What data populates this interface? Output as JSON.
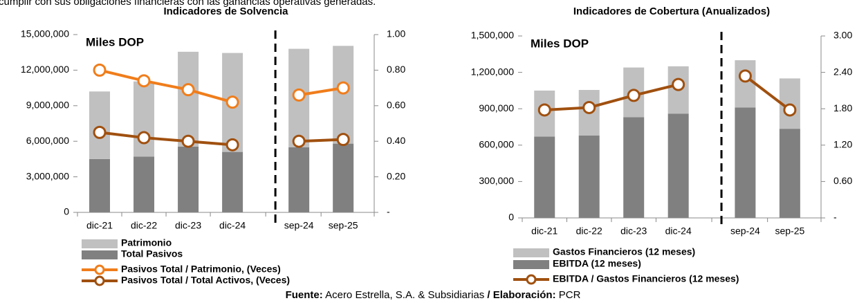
{
  "caption": "cumplir con sus obligaciones financieras con las ganancias operativas generadas.",
  "source": {
    "label": "Fuente:",
    "text": "Acero Estrella, S.A.  & Subsidiarias",
    "label2": "/ Elaboración:",
    "text2": "PCR"
  },
  "chart_data": [
    {
      "type": "bar",
      "title": "Indicadores de Solvencia",
      "annotation": "Miles DOP",
      "categories": [
        "dic-21",
        "dic-22",
        "dic-23",
        "dic-24",
        "sep-24",
        "sep-25"
      ],
      "divider_after": "dic-24",
      "series": [
        {
          "name": "Patrimonio",
          "type": "bar",
          "color": "#c0c0c0",
          "values": [
            5700000,
            6350000,
            8000000,
            8350000,
            8300000,
            8250000
          ]
        },
        {
          "name": "Total Pasivos",
          "type": "bar",
          "color": "#808080",
          "values": [
            4500000,
            4700000,
            5550000,
            5100000,
            5500000,
            5800000
          ]
        },
        {
          "name": "Pasivos Total / Patrimonio, (Veces)",
          "type": "line",
          "axis": "y2",
          "color": "#f07d1b",
          "values": [
            0.8,
            0.74,
            0.69,
            0.62,
            0.66,
            0.7
          ]
        },
        {
          "name": "Pasivos Total / Total Activos, (Veces)",
          "type": "line",
          "axis": "y2",
          "color": "#a0500f",
          "values": [
            0.45,
            0.42,
            0.4,
            0.38,
            0.4,
            0.41
          ]
        }
      ],
      "ylim": [
        0,
        15000000
      ],
      "yticks": [
        0,
        {
          "value": 3000000,
          "label": "3,000,000"
        },
        {
          "value": 6000000,
          "label": "6,000,000"
        },
        {
          "value": 9000000,
          "label": "9,000,000"
        },
        {
          "value": 12000000,
          "label": "12,000,000"
        },
        {
          "value": 15000000,
          "label": "15,000,000"
        }
      ],
      "y2lim": [
        0,
        1
      ],
      "y2ticks": [
        {
          "value": 0,
          "label": "-"
        },
        {
          "value": 0.2,
          "label": "0.20"
        },
        {
          "value": 0.4,
          "label": "0.40"
        },
        {
          "value": 0.6,
          "label": "0.60"
        },
        {
          "value": 0.8,
          "label": "0.80"
        },
        {
          "value": 1,
          "label": "1.00"
        }
      ]
    },
    {
      "type": "bar",
      "title": "Indicadores de Cobertura (Anualizados)",
      "annotation": "Miles DOP",
      "categories": [
        "dic-21",
        "dic-22",
        "dic-23",
        "dic-24",
        "sep-24",
        "sep-25"
      ],
      "divider_after": "dic-24",
      "series": [
        {
          "name": "Gastos Financieros (12 meses)",
          "type": "bar",
          "color": "#c0c0c0",
          "values": [
            380000,
            375000,
            410000,
            390000,
            390000,
            415000
          ]
        },
        {
          "name": "EBITDA (12 meses)",
          "type": "bar",
          "color": "#808080",
          "values": [
            670000,
            680000,
            830000,
            860000,
            910000,
            735000
          ]
        },
        {
          "name": "EBITDA / Gastos Financieros (12 meses)",
          "type": "line",
          "axis": "y2",
          "color": "#a0500f",
          "values": [
            1.78,
            1.82,
            2.02,
            2.2,
            2.34,
            1.78
          ]
        }
      ],
      "ylim": [
        0,
        1500000
      ],
      "yticks": [
        0,
        {
          "value": 300000,
          "label": "300,000"
        },
        {
          "value": 600000,
          "label": "600,000"
        },
        {
          "value": 900000,
          "label": "900,000"
        },
        {
          "value": 1200000,
          "label": "1,200,000"
        },
        {
          "value": 1500000,
          "label": "1,500,000"
        }
      ],
      "y2lim": [
        0,
        3
      ],
      "y2ticks": [
        {
          "value": 0,
          "label": "-"
        },
        {
          "value": 0.6,
          "label": "0.60"
        },
        {
          "value": 1.2,
          "label": "1.20"
        },
        {
          "value": 1.8,
          "label": "1.80"
        },
        {
          "value": 2.4,
          "label": "2.40"
        },
        {
          "value": 3,
          "label": "3.00"
        }
      ]
    }
  ]
}
